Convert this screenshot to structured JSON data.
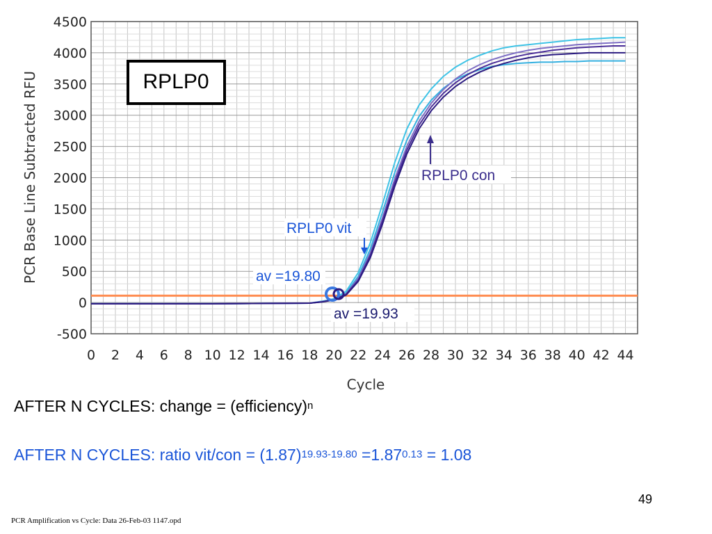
{
  "chart_data": {
    "type": "line",
    "title": "RPLP0",
    "xlabel": "Cycle",
    "ylabel": "PCR Base Line Subtracted RFU",
    "xlim": [
      0,
      45
    ],
    "ylim": [
      -500,
      4500
    ],
    "x_ticks": [
      0,
      2,
      4,
      6,
      8,
      10,
      12,
      14,
      16,
      18,
      20,
      22,
      24,
      26,
      28,
      30,
      32,
      34,
      36,
      38,
      40,
      42,
      44
    ],
    "y_ticks": [
      -500,
      0,
      500,
      1000,
      1500,
      2000,
      2500,
      3000,
      3500,
      4000,
      4500
    ],
    "grid": true,
    "threshold": {
      "y": 110,
      "color": "#ff8c50"
    },
    "x": [
      0,
      10,
      18,
      19,
      20,
      21,
      22,
      23,
      24,
      25,
      26,
      27,
      28,
      29,
      30,
      31,
      32,
      33,
      34,
      35,
      36,
      37,
      38,
      39,
      40,
      41,
      42,
      43,
      44
    ],
    "series": [
      {
        "color": "#3ec3e6",
        "values": [
          -20,
          -20,
          -10,
          20,
          60,
          180,
          480,
          960,
          1580,
          2240,
          2780,
          3160,
          3420,
          3620,
          3770,
          3880,
          3960,
          4030,
          4080,
          4110,
          4130,
          4150,
          4170,
          4190,
          4210,
          4220,
          4230,
          4240,
          4240
        ]
      },
      {
        "color": "#35b0e0",
        "values": [
          -20,
          -20,
          -10,
          15,
          50,
          150,
          420,
          860,
          1450,
          2080,
          2600,
          2980,
          3240,
          3430,
          3570,
          3660,
          3730,
          3780,
          3810,
          3830,
          3840,
          3850,
          3850,
          3860,
          3860,
          3870,
          3870,
          3870,
          3870
        ]
      },
      {
        "color": "#7d6ec4",
        "values": [
          -20,
          -20,
          -10,
          15,
          50,
          140,
          390,
          800,
          1360,
          1980,
          2500,
          2900,
          3190,
          3410,
          3580,
          3710,
          3810,
          3890,
          3950,
          4000,
          4040,
          4070,
          4090,
          4110,
          4130,
          4140,
          4150,
          4160,
          4170
        ]
      },
      {
        "color": "#4a2d98",
        "values": [
          -20,
          -20,
          -10,
          10,
          45,
          130,
          360,
          760,
          1310,
          1920,
          2440,
          2840,
          3130,
          3350,
          3520,
          3650,
          3750,
          3830,
          3890,
          3940,
          3980,
          4010,
          4040,
          4060,
          4080,
          4090,
          4100,
          4110,
          4110
        ]
      },
      {
        "color": "#2a1a80",
        "values": [
          -20,
          -20,
          -10,
          10,
          40,
          120,
          340,
          720,
          1260,
          1860,
          2380,
          2780,
          3070,
          3290,
          3460,
          3590,
          3690,
          3770,
          3830,
          3880,
          3920,
          3950,
          3970,
          3980,
          3990,
          4000,
          4000,
          4000,
          4000
        ]
      }
    ],
    "annotations": [
      {
        "text": "RPLP0 con",
        "color": "#3a2d8c"
      },
      {
        "text": "RPLP0 vit",
        "color": "#1a55d8"
      },
      {
        "text": "av =19.80",
        "color": "#1a55d8"
      },
      {
        "text": "av =19.93",
        "color": "#1a1a6e"
      }
    ]
  },
  "equations": {
    "line1": {
      "text": "AFTER N CYCLES: change = (efficiency)",
      "sup": "n"
    },
    "line2": {
      "prefix": "AFTER N CYCLES: ratio vit/con = (1.87)",
      "sup1": "19.93-19.80",
      "mid": " =1.87",
      "sup2": "0.13",
      "suffix": " = 1.08"
    }
  },
  "page_number": "49",
  "footnote": "PCR Amplification vs Cycle: Data 26-Feb-03 1147.opd"
}
